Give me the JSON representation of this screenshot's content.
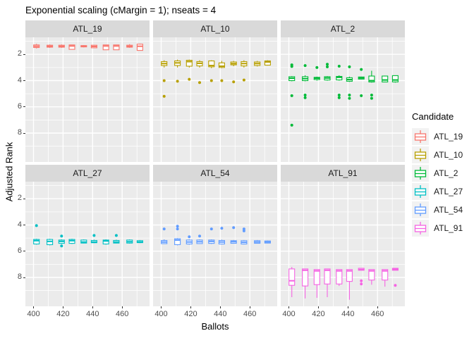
{
  "style": {
    "panel_background": "#EBEBEB",
    "strip_background": "#D9D9D9",
    "gridline": "#FFFFFF",
    "axis_text": "#4D4D4D",
    "text": "#000000",
    "box_fill": "#FFFFFF",
    "legend_key_background": "#F2F2F2"
  },
  "chart_data": {
    "type": "boxplot",
    "title": "Exponential scaling (cMargin = 1); nseats = 4",
    "xlabel": "Ballots",
    "ylabel": "Adjusted Rank",
    "x_domain": [
      394.5,
      478.5
    ],
    "y_domain": [
      0.7,
      10.2
    ],
    "y_increases_downward": true,
    "x_ticks": [
      400,
      420,
      440,
      460
    ],
    "x_minor_ticks": [
      410,
      430,
      450,
      470
    ],
    "y_ticks": [
      2,
      4,
      6,
      8
    ],
    "y_minor_ticks": [
      1,
      3,
      5,
      7,
      9
    ],
    "grid": true,
    "facet_layout": {
      "rows": 2,
      "cols": 3
    },
    "legend": {
      "title": "Candidate",
      "position": "right",
      "items": [
        {
          "label": "ATL_19",
          "color": "#F8766D"
        },
        {
          "label": "ATL_10",
          "color": "#B79F00"
        },
        {
          "label": "ATL_2",
          "color": "#00BA38"
        },
        {
          "label": "ATL_27",
          "color": "#00BFC4"
        },
        {
          "label": "ATL_54",
          "color": "#619CFF"
        },
        {
          "label": "ATL_91",
          "color": "#F564E3"
        }
      ]
    },
    "facets": [
      {
        "label": "ATL_19",
        "color": "#F8766D",
        "boxes": [
          {
            "x": 402,
            "lo": 1.2,
            "q1": 1.28,
            "med": 1.38,
            "q3": 1.48,
            "hi": 1.55,
            "out": []
          },
          {
            "x": 411,
            "lo": 1.25,
            "q1": 1.3,
            "med": 1.38,
            "q3": 1.45,
            "hi": 1.5,
            "out": []
          },
          {
            "x": 419,
            "lo": 1.25,
            "q1": 1.3,
            "med": 1.38,
            "q3": 1.45,
            "hi": 1.5,
            "out": []
          },
          {
            "x": 426,
            "lo": 1.28,
            "q1": 1.28,
            "med": 1.36,
            "q3": 1.62,
            "hi": 1.62,
            "out": []
          },
          {
            "x": 434,
            "lo": 1.3,
            "q1": 1.33,
            "med": 1.38,
            "q3": 1.43,
            "hi": 1.47,
            "out": []
          },
          {
            "x": 441,
            "lo": 1.28,
            "q1": 1.3,
            "med": 1.4,
            "q3": 1.5,
            "hi": 1.52,
            "out": []
          },
          {
            "x": 449,
            "lo": 1.28,
            "q1": 1.28,
            "med": 1.36,
            "q3": 1.65,
            "hi": 1.65,
            "out": []
          },
          {
            "x": 456,
            "lo": 1.28,
            "q1": 1.28,
            "med": 1.36,
            "q3": 1.65,
            "hi": 1.65,
            "out": []
          },
          {
            "x": 465,
            "lo": 1.22,
            "q1": 1.3,
            "med": 1.38,
            "q3": 1.45,
            "hi": 1.5,
            "out": []
          },
          {
            "x": 472,
            "lo": 1.18,
            "q1": 1.22,
            "med": 1.38,
            "q3": 1.7,
            "hi": 1.7,
            "out": []
          }
        ]
      },
      {
        "label": "ATL_10",
        "color": "#B79F00",
        "boxes": [
          {
            "x": 402,
            "lo": 2.45,
            "q1": 2.55,
            "med": 2.7,
            "q3": 2.85,
            "hi": 3.0,
            "out": [
              4.0,
              5.2
            ]
          },
          {
            "x": 411,
            "lo": 2.4,
            "q1": 2.5,
            "med": 2.65,
            "q3": 2.85,
            "hi": 3.0,
            "out": [
              4.05
            ]
          },
          {
            "x": 419,
            "lo": 2.4,
            "q1": 2.45,
            "med": 2.55,
            "q3": 2.9,
            "hi": 3.0,
            "out": [
              3.9
            ]
          },
          {
            "x": 426,
            "lo": 2.45,
            "q1": 2.55,
            "med": 2.68,
            "q3": 2.88,
            "hi": 3.0,
            "out": [
              4.15
            ]
          },
          {
            "x": 434,
            "lo": 2.45,
            "q1": 2.5,
            "med": 2.85,
            "q3": 2.95,
            "hi": 3.05,
            "out": [
              4.0
            ]
          },
          {
            "x": 441,
            "lo": 2.5,
            "q1": 2.65,
            "med": 2.9,
            "q3": 3.0,
            "hi": 3.05,
            "out": [
              4.0
            ]
          },
          {
            "x": 449,
            "lo": 2.5,
            "q1": 2.58,
            "med": 2.7,
            "q3": 2.8,
            "hi": 2.9,
            "out": [
              4.1
            ]
          },
          {
            "x": 456,
            "lo": 2.45,
            "q1": 2.55,
            "med": 2.7,
            "q3": 2.88,
            "hi": 3.0,
            "out": [
              3.95
            ]
          },
          {
            "x": 465,
            "lo": 2.5,
            "q1": 2.58,
            "med": 2.7,
            "q3": 2.85,
            "hi": 2.92,
            "out": []
          },
          {
            "x": 472,
            "lo": 2.45,
            "q1": 2.5,
            "med": 2.58,
            "q3": 2.82,
            "hi": 2.85,
            "out": []
          }
        ]
      },
      {
        "label": "ATL_2",
        "color": "#00BA38",
        "boxes": [
          {
            "x": 402,
            "lo": 3.65,
            "q1": 3.7,
            "med": 3.82,
            "q3": 4.0,
            "hi": 4.05,
            "out": [
              2.8,
              2.92,
              5.15,
              7.4
            ]
          },
          {
            "x": 411,
            "lo": 3.6,
            "q1": 3.7,
            "med": 3.85,
            "q3": 4.0,
            "hi": 4.05,
            "out": [
              2.85,
              5.1,
              5.3
            ]
          },
          {
            "x": 419,
            "lo": 3.7,
            "q1": 3.75,
            "med": 3.82,
            "q3": 3.92,
            "hi": 4.0,
            "out": [
              3.0
            ]
          },
          {
            "x": 426,
            "lo": 3.65,
            "q1": 3.7,
            "med": 3.8,
            "q3": 3.95,
            "hi": 4.0,
            "out": [
              2.75,
              2.95
            ]
          },
          {
            "x": 434,
            "lo": 3.6,
            "q1": 3.68,
            "med": 3.75,
            "q3": 3.95,
            "hi": 4.0,
            "out": [
              2.9,
              5.1,
              5.3
            ]
          },
          {
            "x": 441,
            "lo": 3.7,
            "q1": 3.78,
            "med": 3.92,
            "q3": 4.05,
            "hi": 4.1,
            "out": [
              2.95,
              5.1,
              5.35
            ]
          },
          {
            "x": 449,
            "lo": 3.7,
            "q1": 3.72,
            "med": 3.8,
            "q3": 3.88,
            "hi": 3.9,
            "out": [
              3.15,
              5.15
            ]
          },
          {
            "x": 456,
            "lo": 3.25,
            "q1": 3.65,
            "med": 4.0,
            "q3": 4.1,
            "hi": 4.15,
            "out": [
              5.1,
              5.35
            ]
          },
          {
            "x": 465,
            "lo": 3.62,
            "q1": 3.65,
            "med": 3.95,
            "q3": 4.1,
            "hi": 4.12,
            "out": []
          },
          {
            "x": 472,
            "lo": 3.6,
            "q1": 3.62,
            "med": 3.95,
            "q3": 4.1,
            "hi": 4.15,
            "out": []
          }
        ]
      },
      {
        "label": "ATL_27",
        "color": "#00BFC4",
        "boxes": [
          {
            "x": 402,
            "lo": 5.05,
            "q1": 5.1,
            "med": 5.2,
            "q3": 5.45,
            "hi": 5.5,
            "out": [
              4.05
            ]
          },
          {
            "x": 411,
            "lo": 5.05,
            "q1": 5.1,
            "med": 5.25,
            "q3": 5.5,
            "hi": 5.55,
            "out": []
          },
          {
            "x": 419,
            "lo": 5.1,
            "q1": 5.15,
            "med": 5.25,
            "q3": 5.4,
            "hi": 5.45,
            "out": [
              4.85,
              5.6
            ]
          },
          {
            "x": 426,
            "lo": 5.05,
            "q1": 5.1,
            "med": 5.2,
            "q3": 5.4,
            "hi": 5.45,
            "out": []
          },
          {
            "x": 434,
            "lo": 5.1,
            "q1": 5.15,
            "med": 5.3,
            "q3": 5.38,
            "hi": 5.4,
            "out": []
          },
          {
            "x": 441,
            "lo": 5.12,
            "q1": 5.18,
            "med": 5.3,
            "q3": 5.35,
            "hi": 5.38,
            "out": [
              4.8
            ]
          },
          {
            "x": 449,
            "lo": 5.1,
            "q1": 5.15,
            "med": 5.22,
            "q3": 5.45,
            "hi": 5.5,
            "out": []
          },
          {
            "x": 456,
            "lo": 5.12,
            "q1": 5.18,
            "med": 5.3,
            "q3": 5.38,
            "hi": 5.4,
            "out": [
              4.8
            ]
          },
          {
            "x": 465,
            "lo": 5.1,
            "q1": 5.15,
            "med": 5.28,
            "q3": 5.38,
            "hi": 5.42,
            "out": []
          },
          {
            "x": 472,
            "lo": 5.15,
            "q1": 5.2,
            "med": 5.3,
            "q3": 5.35,
            "hi": 5.38,
            "out": []
          }
        ]
      },
      {
        "label": "ATL_54",
        "color": "#619CFF",
        "boxes": [
          {
            "x": 402,
            "lo": 5.1,
            "q1": 5.18,
            "med": 5.3,
            "q3": 5.42,
            "hi": 5.45,
            "out": [
              4.3
            ]
          },
          {
            "x": 411,
            "lo": 5.0,
            "q1": 5.05,
            "med": 5.15,
            "q3": 5.5,
            "hi": 5.55,
            "out": [
              4.1,
              4.3
            ]
          },
          {
            "x": 419,
            "lo": 5.1,
            "q1": 5.15,
            "med": 5.3,
            "q3": 5.45,
            "hi": 5.5,
            "out": [
              4.9
            ]
          },
          {
            "x": 426,
            "lo": 5.1,
            "q1": 5.15,
            "med": 5.28,
            "q3": 5.42,
            "hi": 5.45,
            "out": [
              4.85
            ]
          },
          {
            "x": 434,
            "lo": 5.1,
            "q1": 5.15,
            "med": 5.25,
            "q3": 5.4,
            "hi": 5.45,
            "out": [
              4.3
            ]
          },
          {
            "x": 441,
            "lo": 5.12,
            "q1": 5.18,
            "med": 5.3,
            "q3": 5.45,
            "hi": 5.48,
            "out": [
              4.25
            ]
          },
          {
            "x": 449,
            "lo": 5.15,
            "q1": 5.2,
            "med": 5.28,
            "q3": 5.4,
            "hi": 5.42,
            "out": [
              4.2
            ]
          },
          {
            "x": 456,
            "lo": 5.15,
            "q1": 5.2,
            "med": 5.32,
            "q3": 5.45,
            "hi": 5.48,
            "out": [
              4.3,
              4.45
            ]
          },
          {
            "x": 465,
            "lo": 5.15,
            "q1": 5.2,
            "med": 5.3,
            "q3": 5.4,
            "hi": 5.42,
            "out": []
          },
          {
            "x": 472,
            "lo": 5.18,
            "q1": 5.22,
            "med": 5.3,
            "q3": 5.38,
            "hi": 5.4,
            "out": []
          }
        ]
      },
      {
        "label": "ATL_91",
        "color": "#F564E3",
        "boxes": [
          {
            "x": 402,
            "lo": 7.2,
            "q1": 7.35,
            "med": 8.25,
            "q3": 8.6,
            "hi": 9.5,
            "out": []
          },
          {
            "x": 411,
            "lo": 7.35,
            "q1": 7.35,
            "med": 7.45,
            "q3": 8.65,
            "hi": 9.6,
            "out": []
          },
          {
            "x": 419,
            "lo": 7.4,
            "q1": 7.4,
            "med": 7.5,
            "q3": 8.55,
            "hi": 9.55,
            "out": []
          },
          {
            "x": 426,
            "lo": 7.35,
            "q1": 7.35,
            "med": 7.45,
            "q3": 8.5,
            "hi": 9.5,
            "out": []
          },
          {
            "x": 434,
            "lo": 7.4,
            "q1": 7.4,
            "med": 7.5,
            "q3": 8.5,
            "hi": 8.65,
            "out": []
          },
          {
            "x": 441,
            "lo": 7.4,
            "q1": 7.4,
            "med": 7.5,
            "q3": 8.3,
            "hi": 9.7,
            "out": []
          },
          {
            "x": 449,
            "lo": 7.3,
            "q1": 7.3,
            "med": 7.4,
            "q3": 7.45,
            "hi": 7.45,
            "out": [
              8.25,
              8.5
            ]
          },
          {
            "x": 456,
            "lo": 7.4,
            "q1": 7.4,
            "med": 7.5,
            "q3": 8.2,
            "hi": 8.55,
            "out": []
          },
          {
            "x": 465,
            "lo": 7.4,
            "q1": 7.4,
            "med": 7.5,
            "q3": 8.2,
            "hi": 8.7,
            "out": []
          },
          {
            "x": 472,
            "lo": 7.3,
            "q1": 7.3,
            "med": 7.38,
            "q3": 7.45,
            "hi": 7.45,
            "out": [
              8.6
            ]
          }
        ]
      }
    ]
  }
}
